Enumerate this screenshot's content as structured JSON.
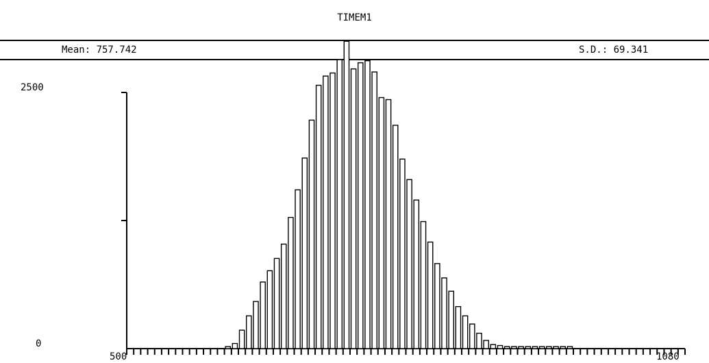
{
  "header": {
    "title": "TIMEM1",
    "mean_label": "Mean: 757.742",
    "sd_label": "S.D.: 69.341"
  },
  "chart_data": {
    "type": "bar",
    "title": "TIMEM1",
    "xlim": [
      500,
      1080
    ],
    "ylim": [
      0,
      2500
    ],
    "y_tick_labels": [
      "2500",
      "0"
    ],
    "x_tick_labels": [
      "500",
      "1080"
    ],
    "bin_width": 7.25,
    "bin_starts": [
      500.0,
      507.25,
      514.5,
      521.75,
      529.0,
      536.25,
      543.5,
      550.75,
      558.0,
      565.25,
      572.5,
      579.75,
      587.0,
      594.25,
      601.5,
      608.75,
      616.0,
      623.25,
      630.5,
      637.75,
      645.0,
      652.25,
      659.5,
      666.75,
      674.0,
      681.25,
      688.5,
      695.75,
      703.0,
      710.25,
      717.5,
      724.75,
      732.0,
      739.25,
      746.5,
      753.75,
      761.0,
      768.25,
      775.5,
      782.75,
      790.0,
      797.25,
      804.5,
      811.75,
      819.0,
      826.25,
      833.5,
      840.75,
      848.0,
      855.25,
      862.5,
      869.75,
      877.0,
      884.25,
      891.5,
      898.75,
      906.0,
      913.25,
      920.5,
      927.75,
      935.0,
      942.25,
      949.5,
      956.75,
      964.0,
      971.25,
      978.5,
      985.75,
      993.0,
      1000.25,
      1007.5,
      1014.75,
      1022.0,
      1029.25,
      1036.5,
      1043.75,
      1051.0,
      1058.25,
      1065.5,
      1072.75
    ],
    "values": [
      0,
      0,
      0,
      0,
      0,
      0,
      0,
      0,
      0,
      0,
      0,
      0,
      0,
      0,
      20,
      50,
      180,
      320,
      460,
      650,
      760,
      880,
      1020,
      1280,
      1550,
      1860,
      2230,
      2570,
      2660,
      2690,
      2820,
      3000,
      2730,
      2790,
      2810,
      2700,
      2450,
      2430,
      2180,
      1850,
      1650,
      1450,
      1240,
      1040,
      830,
      690,
      560,
      410,
      320,
      240,
      150,
      80,
      40,
      30,
      20,
      20,
      20,
      20,
      20,
      20,
      20,
      20,
      20,
      20,
      0,
      0,
      0,
      0,
      0,
      0,
      0,
      0,
      0,
      0,
      0,
      0,
      0,
      0,
      0,
      0
    ],
    "grid": false,
    "legend": "none",
    "colors": {
      "bar_fill": "#ffffff",
      "bar_stroke": "#000000",
      "axis": "#000000"
    }
  }
}
